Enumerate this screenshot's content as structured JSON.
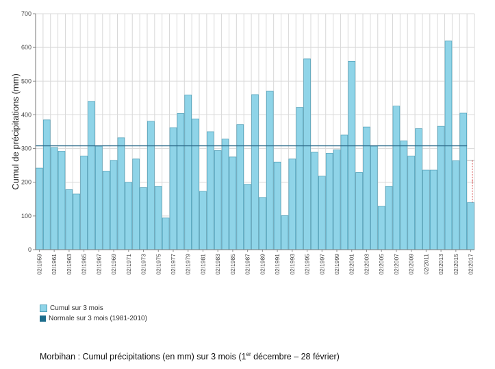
{
  "colors": {
    "bar_fill": "#8fd4e8",
    "bar_stroke": "#4a9cb5",
    "normal_line": "#2c6a8a",
    "normal_swatch": "#1c6d8c",
    "grid": "#d8d8d8",
    "gap_marker": "#cc2222"
  },
  "chart_data": {
    "type": "bar",
    "ylabel": "Cumul de précipitations (mm)",
    "ylim": [
      0,
      700
    ],
    "yticks": [
      0,
      100,
      200,
      300,
      400,
      500,
      600,
      700
    ],
    "grid": true,
    "normal_value": 308,
    "normal_2017_value": 265,
    "gap_marker_label": "!",
    "categories": [
      "02/1959",
      "02/1960",
      "02/1961",
      "02/1962",
      "02/1963",
      "02/1964",
      "02/1965",
      "02/1966",
      "02/1967",
      "02/1968",
      "02/1969",
      "02/1970",
      "02/1971",
      "02/1972",
      "02/1973",
      "02/1974",
      "02/1975",
      "02/1976",
      "02/1977",
      "02/1978",
      "02/1979",
      "02/1980",
      "02/1981",
      "02/1982",
      "02/1983",
      "02/1984",
      "02/1985",
      "02/1986",
      "02/1987",
      "02/1988",
      "02/1989",
      "02/1990",
      "02/1991",
      "02/1992",
      "02/1993",
      "02/1994",
      "02/1995",
      "02/1996",
      "02/1997",
      "02/1998",
      "02/1999",
      "02/2000",
      "02/2001",
      "02/2002",
      "02/2003",
      "02/2004",
      "02/2005",
      "02/2006",
      "02/2007",
      "02/2008",
      "02/2009",
      "02/2010",
      "02/2011",
      "02/2012",
      "02/2013",
      "02/2014",
      "02/2015",
      "02/2016",
      "02/2017"
    ],
    "x_tick_labels": [
      "02/1959",
      "02/1961",
      "02/1963",
      "02/1965",
      "02/1967",
      "02/1969",
      "02/1971",
      "02/1973",
      "02/1975",
      "02/1977",
      "02/1979",
      "02/1981",
      "02/1983",
      "02/1985",
      "02/1987",
      "02/1989",
      "02/1991",
      "02/1993",
      "02/1995",
      "02/1997",
      "02/1999",
      "02/2001",
      "02/2003",
      "02/2005",
      "02/2007",
      "02/2009",
      "02/2011",
      "02/2013",
      "02/2015",
      "02/2017"
    ],
    "series": [
      {
        "name": "Cumul sur 3 mois",
        "values": [
          242,
          385,
          303,
          292,
          178,
          165,
          278,
          440,
          307,
          233,
          265,
          332,
          200,
          269,
          184,
          381,
          188,
          94,
          362,
          404,
          459,
          388,
          173,
          350,
          294,
          328,
          275,
          371,
          194,
          460,
          155,
          470,
          260,
          101,
          269,
          422,
          566,
          289,
          218,
          286,
          296,
          340,
          559,
          229,
          364,
          307,
          129,
          188,
          426,
          323,
          278,
          359,
          236,
          236,
          366,
          619,
          264,
          405,
          140
        ]
      },
      {
        "name": "Normale sur 3 mois (1981-2010)",
        "value": 308
      }
    ]
  },
  "legend": {
    "items": [
      {
        "label": "Cumul sur 3 mois"
      },
      {
        "label": "Normale sur 3 mois (1981-2010)"
      }
    ]
  },
  "caption": {
    "prefix": "Morbihan : Cumul précipitations (en mm) sur 3 mois (1",
    "sup": "er",
    "suffix": " décembre – 28 février)"
  }
}
